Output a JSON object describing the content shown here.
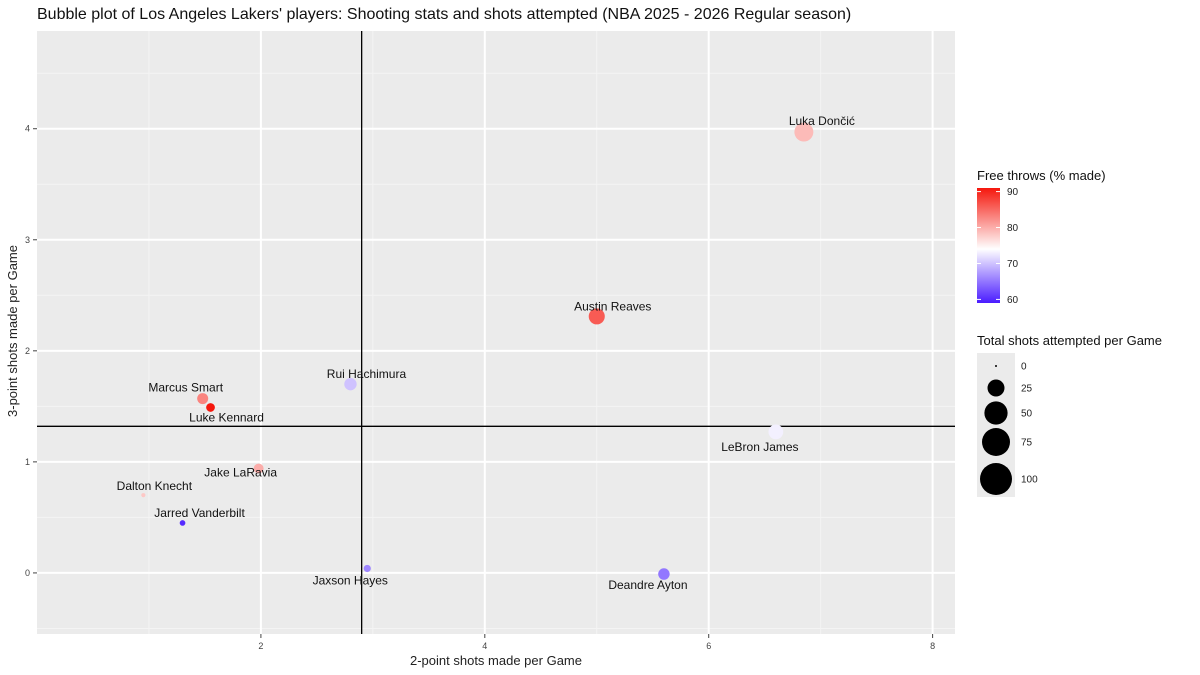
{
  "chart_data": {
    "type": "scatter",
    "title": "Bubble plot of Los Angeles Lakers' players: Shooting stats and shots attempted (NBA 2025 - 2026 Regular season)",
    "xlabel": "2-point shots made per Game",
    "ylabel": "3-point shots made per Game",
    "xlim": [
      0.0,
      8.2
    ],
    "ylim": [
      -0.55,
      4.88
    ],
    "xticks": [
      2,
      4,
      6,
      8
    ],
    "yticks": [
      0,
      1,
      2,
      3,
      4
    ],
    "xtick_labels": [
      "2",
      "4",
      "6",
      "8"
    ],
    "ytick_labels": [
      "0",
      "1",
      "2",
      "3",
      "4"
    ],
    "reference_lines": {
      "x": 2.9,
      "y": 1.32
    },
    "points": [
      {
        "name": "Luka Dončić",
        "x": 6.85,
        "y": 3.97,
        "ft_pct": 79,
        "shots": 32
      },
      {
        "name": "Austin Reaves",
        "x": 5.0,
        "y": 2.31,
        "ft_pct": 86,
        "shots": 22
      },
      {
        "name": "LeBron James",
        "x": 6.6,
        "y": 1.27,
        "ft_pct": 73,
        "shots": 18
      },
      {
        "name": "Rui Hachimura",
        "x": 2.8,
        "y": 1.7,
        "ft_pct": 70,
        "shots": 12
      },
      {
        "name": "Marcus Smart",
        "x": 1.48,
        "y": 1.57,
        "ft_pct": 83,
        "shots": 9
      },
      {
        "name": "Luke Kennard",
        "x": 1.55,
        "y": 1.49,
        "ft_pct": 91,
        "shots": 5
      },
      {
        "name": "Jake LaRavia",
        "x": 1.98,
        "y": 0.94,
        "ft_pct": 80,
        "shots": 7
      },
      {
        "name": "Dalton Knecht",
        "x": 0.95,
        "y": 0.7,
        "ft_pct": 78,
        "shots": 0.5
      },
      {
        "name": "Jarred Vanderbilt",
        "x": 1.3,
        "y": 0.45,
        "ft_pct": 60,
        "shots": 1.5
      },
      {
        "name": "Jaxson Hayes",
        "x": 2.95,
        "y": 0.04,
        "ft_pct": 66,
        "shots": 3
      },
      {
        "name": "Deandre Ayton",
        "x": 5.6,
        "y": -0.01,
        "ft_pct": 65,
        "shots": 10
      }
    ],
    "color_legend": {
      "title": "Free throws (% made)",
      "ticks": [
        60,
        70,
        80,
        90
      ],
      "tick_labels": [
        "60",
        "70",
        "80",
        "90"
      ],
      "range": [
        59,
        91
      ],
      "low_color": "#4a1cff",
      "mid_color": "#ffffff",
      "high_color": "#f5170d",
      "midpoint": 74
    },
    "size_legend": {
      "title": "Total shots attempted per Game",
      "values": [
        0,
        25,
        50,
        75,
        100
      ],
      "labels": [
        "0",
        "25",
        "50",
        "75",
        "100"
      ]
    }
  },
  "colors": {
    "panel_background": "#ebebeb",
    "grid_major": "#ffffff",
    "reference_line": "#000000"
  }
}
